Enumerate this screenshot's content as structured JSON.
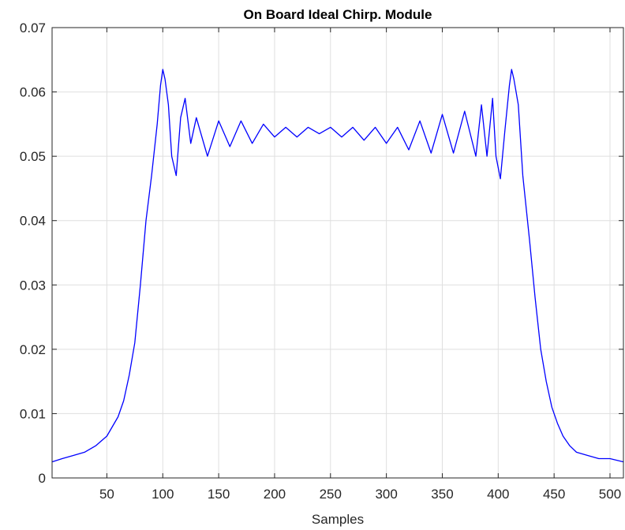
{
  "chart_data": {
    "type": "line",
    "title": "On Board Ideal Chirp. Module",
    "xlabel": "Samples",
    "ylabel": "",
    "xlim": [
      1,
      512
    ],
    "ylim": [
      0,
      0.07
    ],
    "grid": true,
    "legend": "none",
    "line_color": "#0000ff",
    "x_ticks": [
      50,
      100,
      150,
      200,
      250,
      300,
      350,
      400,
      450,
      500
    ],
    "x_tick_labels": [
      "50",
      "100",
      "150",
      "200",
      "250",
      "300",
      "350",
      "400",
      "450",
      "500"
    ],
    "y_ticks": [
      0,
      0.01,
      0.02,
      0.03,
      0.04,
      0.05,
      0.06,
      0.07
    ],
    "y_tick_labels": [
      "0",
      "0.01",
      "0.02",
      "0.03",
      "0.04",
      "0.05",
      "0.06",
      "0.07"
    ],
    "series": [
      {
        "x": [
          1,
          10,
          20,
          30,
          40,
          50,
          60,
          65,
          70,
          75,
          80,
          85,
          90,
          95,
          98,
          100,
          102,
          105,
          108,
          112,
          116,
          120,
          125,
          130,
          140,
          150,
          160,
          170,
          180,
          190,
          200,
          210,
          220,
          230,
          240,
          250,
          260,
          270,
          280,
          290,
          300,
          310,
          320,
          330,
          340,
          350,
          360,
          370,
          380,
          385,
          390,
          395,
          398,
          402,
          406,
          410,
          412,
          414,
          418,
          422,
          428,
          433,
          438,
          443,
          448,
          453,
          458,
          464,
          470,
          480,
          490,
          500,
          512
        ],
        "y": [
          0.0025,
          0.003,
          0.0035,
          0.004,
          0.005,
          0.0065,
          0.0095,
          0.012,
          0.016,
          0.021,
          0.03,
          0.04,
          0.047,
          0.055,
          0.061,
          0.0635,
          0.062,
          0.058,
          0.05,
          0.047,
          0.056,
          0.059,
          0.052,
          0.056,
          0.05,
          0.0555,
          0.0515,
          0.0555,
          0.052,
          0.055,
          0.053,
          0.0545,
          0.053,
          0.0545,
          0.0535,
          0.0545,
          0.053,
          0.0545,
          0.0525,
          0.0545,
          0.052,
          0.0545,
          0.051,
          0.0555,
          0.0505,
          0.0565,
          0.0505,
          0.057,
          0.05,
          0.058,
          0.05,
          0.059,
          0.05,
          0.0465,
          0.054,
          0.061,
          0.0635,
          0.062,
          0.058,
          0.047,
          0.037,
          0.028,
          0.02,
          0.015,
          0.011,
          0.0085,
          0.0065,
          0.005,
          0.004,
          0.0035,
          0.003,
          0.003,
          0.0025
        ]
      }
    ]
  }
}
